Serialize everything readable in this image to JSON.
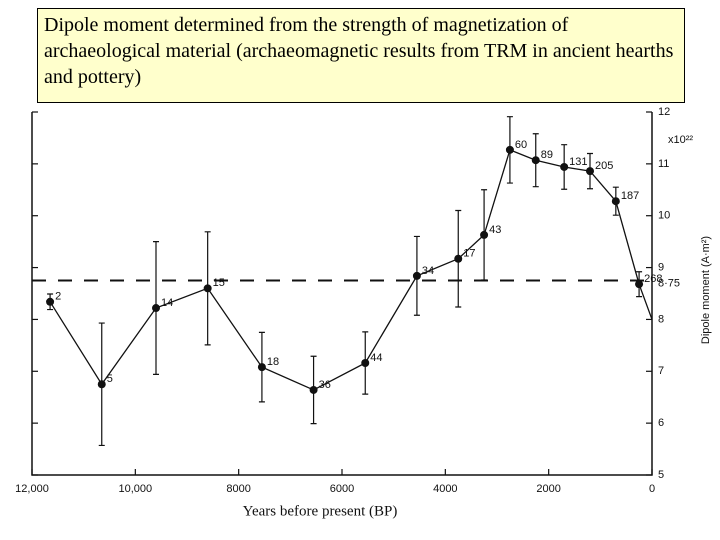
{
  "chart_data": {
    "type": "line",
    "title": "Dipole moment determined from the strength of magnetization of archaeological material (archaeomagnetic results from TRM in ancient hearths and pottery)",
    "x_label": "Years before present (BP)",
    "y_label": "Dipole moment (A·m²)",
    "y_unit_label": "x10²²",
    "x": [
      11650,
      10650,
      9600,
      8600,
      7550,
      6550,
      5550,
      4550,
      3750,
      3250,
      2750,
      2250,
      1700,
      1200,
      700,
      250,
      0
    ],
    "values": [
      8.34,
      6.75,
      8.22,
      8.6,
      7.08,
      6.64,
      7.16,
      8.84,
      9.17,
      9.63,
      11.27,
      11.07,
      10.94,
      10.86,
      10.28,
      8.68,
      8.0
    ],
    "errors": [
      0.15,
      1.18,
      1.28,
      1.09,
      0.67,
      0.65,
      0.6,
      0.76,
      0.93,
      0.87,
      0.64,
      0.51,
      0.43,
      0.34,
      0.27,
      0.24,
      null
    ],
    "point_labels": [
      "2",
      "5",
      "14",
      "15",
      "18",
      "36",
      "44",
      "34",
      "17",
      "43",
      "60",
      "89",
      "131",
      "205",
      "187",
      "268",
      null
    ],
    "color": "#111111",
    "xlim": [
      12000,
      0
    ],
    "xticks": [
      {
        "value": 12000,
        "label": "12,000"
      },
      {
        "value": 10000,
        "label": "10,000"
      },
      8000,
      6000,
      4000,
      2000,
      0
    ],
    "ylim": [
      5,
      12
    ],
    "yticks": [
      5,
      6,
      7,
      8,
      9,
      10,
      11,
      12
    ],
    "reference_line": {
      "value": 8.75,
      "label": "8·75"
    }
  }
}
